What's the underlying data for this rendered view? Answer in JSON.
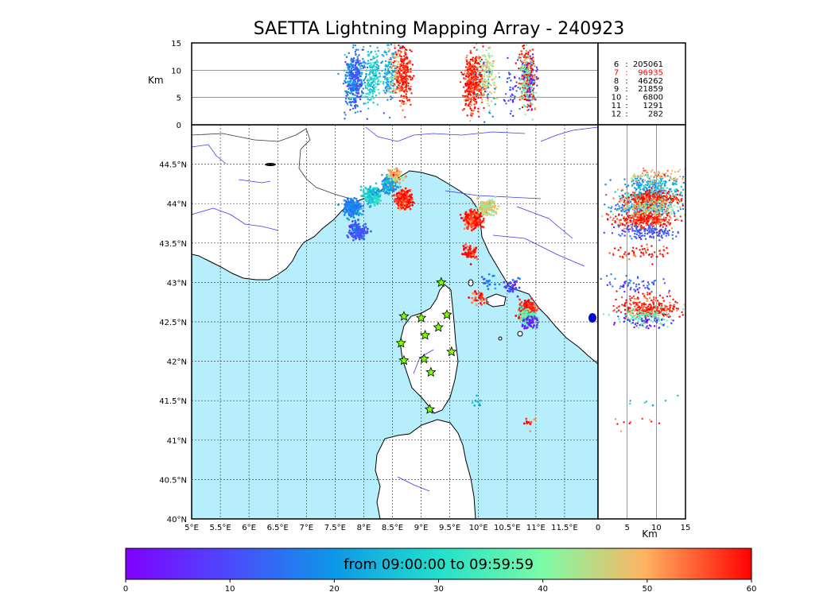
{
  "title": "SAETTA Lightning Mapping Array - 240923",
  "colors": {
    "sea": "#b7eefc",
    "land": "#ffffff",
    "river": "#3a3af0",
    "coast": "#000000",
    "star": "#7dff00"
  },
  "top_panel": {
    "ylabel": "Km",
    "yticks": [
      "0",
      "5",
      "10",
      "15"
    ],
    "legend": [
      {
        "key": "6",
        "value": "205061",
        "highlight": false
      },
      {
        "key": "7",
        "value": "96935",
        "highlight": true
      },
      {
        "key": "8",
        "value": "46262",
        "highlight": false
      },
      {
        "key": "9",
        "value": "21859",
        "highlight": false
      },
      {
        "key": "10",
        "value": "6800",
        "highlight": false
      },
      {
        "key": "11",
        "value": "1291",
        "highlight": false
      },
      {
        "key": "12",
        "value": "282",
        "highlight": false
      }
    ]
  },
  "map_panel": {
    "lon_ticks": [
      "5°E",
      "5.5°E",
      "6°E",
      "6.5°E",
      "7°E",
      "7.5°E",
      "8°E",
      "8.5°E",
      "9°E",
      "9.5°E",
      "10°E",
      "10.5°E",
      "11°E",
      "11.5°E"
    ],
    "lat_ticks": [
      "40°N",
      "40.5°N",
      "41°N",
      "41.5°N",
      "42°N",
      "42.5°N",
      "43°N",
      "43.5°N",
      "44°N",
      "44.5°N"
    ]
  },
  "side_panel": {
    "xlabel": "Km",
    "xticks": [
      "0",
      "5",
      "10",
      "15"
    ]
  },
  "colorbar": {
    "label": "from 09:00:00 to 09:59:59",
    "ticks": [
      "0",
      "10",
      "20",
      "30",
      "40",
      "50",
      "60"
    ],
    "range": [
      0,
      60
    ]
  },
  "chart_data": {
    "type": "scatter",
    "lon_range": [
      5,
      12
    ],
    "lat_range": [
      40,
      45
    ],
    "alt_range_km": [
      0,
      15
    ],
    "time_range_min": [
      0,
      60
    ],
    "stations": [
      {
        "lon": 9.35,
        "lat": 43.0
      },
      {
        "lon": 8.7,
        "lat": 42.57
      },
      {
        "lon": 9.0,
        "lat": 42.55
      },
      {
        "lon": 9.45,
        "lat": 42.59
      },
      {
        "lon": 9.3,
        "lat": 42.43
      },
      {
        "lon": 9.07,
        "lat": 42.33
      },
      {
        "lon": 8.65,
        "lat": 42.23
      },
      {
        "lon": 9.53,
        "lat": 42.12
      },
      {
        "lon": 8.7,
        "lat": 42.01
      },
      {
        "lon": 9.05,
        "lat": 42.03
      },
      {
        "lon": 9.17,
        "lat": 41.86
      },
      {
        "lon": 9.15,
        "lat": 41.39
      }
    ],
    "clusters": [
      {
        "lon": 7.8,
        "lat": 43.95,
        "alt": 8,
        "time": 18,
        "n": 260
      },
      {
        "lon": 7.9,
        "lat": 43.65,
        "alt": 8,
        "time": 12,
        "n": 160
      },
      {
        "lon": 8.15,
        "lat": 44.1,
        "alt": 9,
        "time": 28,
        "n": 200
      },
      {
        "lon": 8.45,
        "lat": 44.25,
        "alt": 9,
        "time": 22,
        "n": 150
      },
      {
        "lon": 8.55,
        "lat": 44.35,
        "alt": 10,
        "time": 48,
        "n": 80
      },
      {
        "lon": 8.7,
        "lat": 44.05,
        "alt": 9,
        "time": 58,
        "n": 300
      },
      {
        "lon": 9.9,
        "lat": 43.8,
        "alt": 8,
        "time": 58,
        "n": 320
      },
      {
        "lon": 10.15,
        "lat": 43.95,
        "alt": 9,
        "time": 45,
        "n": 140
      },
      {
        "lon": 9.85,
        "lat": 43.38,
        "alt": 7,
        "time": 59,
        "n": 60
      },
      {
        "lon": 10.0,
        "lat": 42.82,
        "alt": 7,
        "time": 58,
        "n": 40
      },
      {
        "lon": 10.2,
        "lat": 43.02,
        "alt": 6,
        "time": 15,
        "n": 20
      },
      {
        "lon": 10.6,
        "lat": 42.95,
        "alt": 6,
        "time": 8,
        "n": 40
      },
      {
        "lon": 10.85,
        "lat": 42.65,
        "alt": 9,
        "time": 58,
        "n": 240
      },
      {
        "lon": 10.85,
        "lat": 42.55,
        "alt": 8,
        "time": 36,
        "n": 120
      },
      {
        "lon": 10.9,
        "lat": 42.5,
        "alt": 8,
        "time": 5,
        "n": 50
      },
      {
        "lon": 9.97,
        "lat": 41.48,
        "alt": 9,
        "time": 25,
        "n": 8
      },
      {
        "lon": 10.85,
        "lat": 41.23,
        "alt": 6,
        "time": 58,
        "n": 10
      }
    ]
  }
}
